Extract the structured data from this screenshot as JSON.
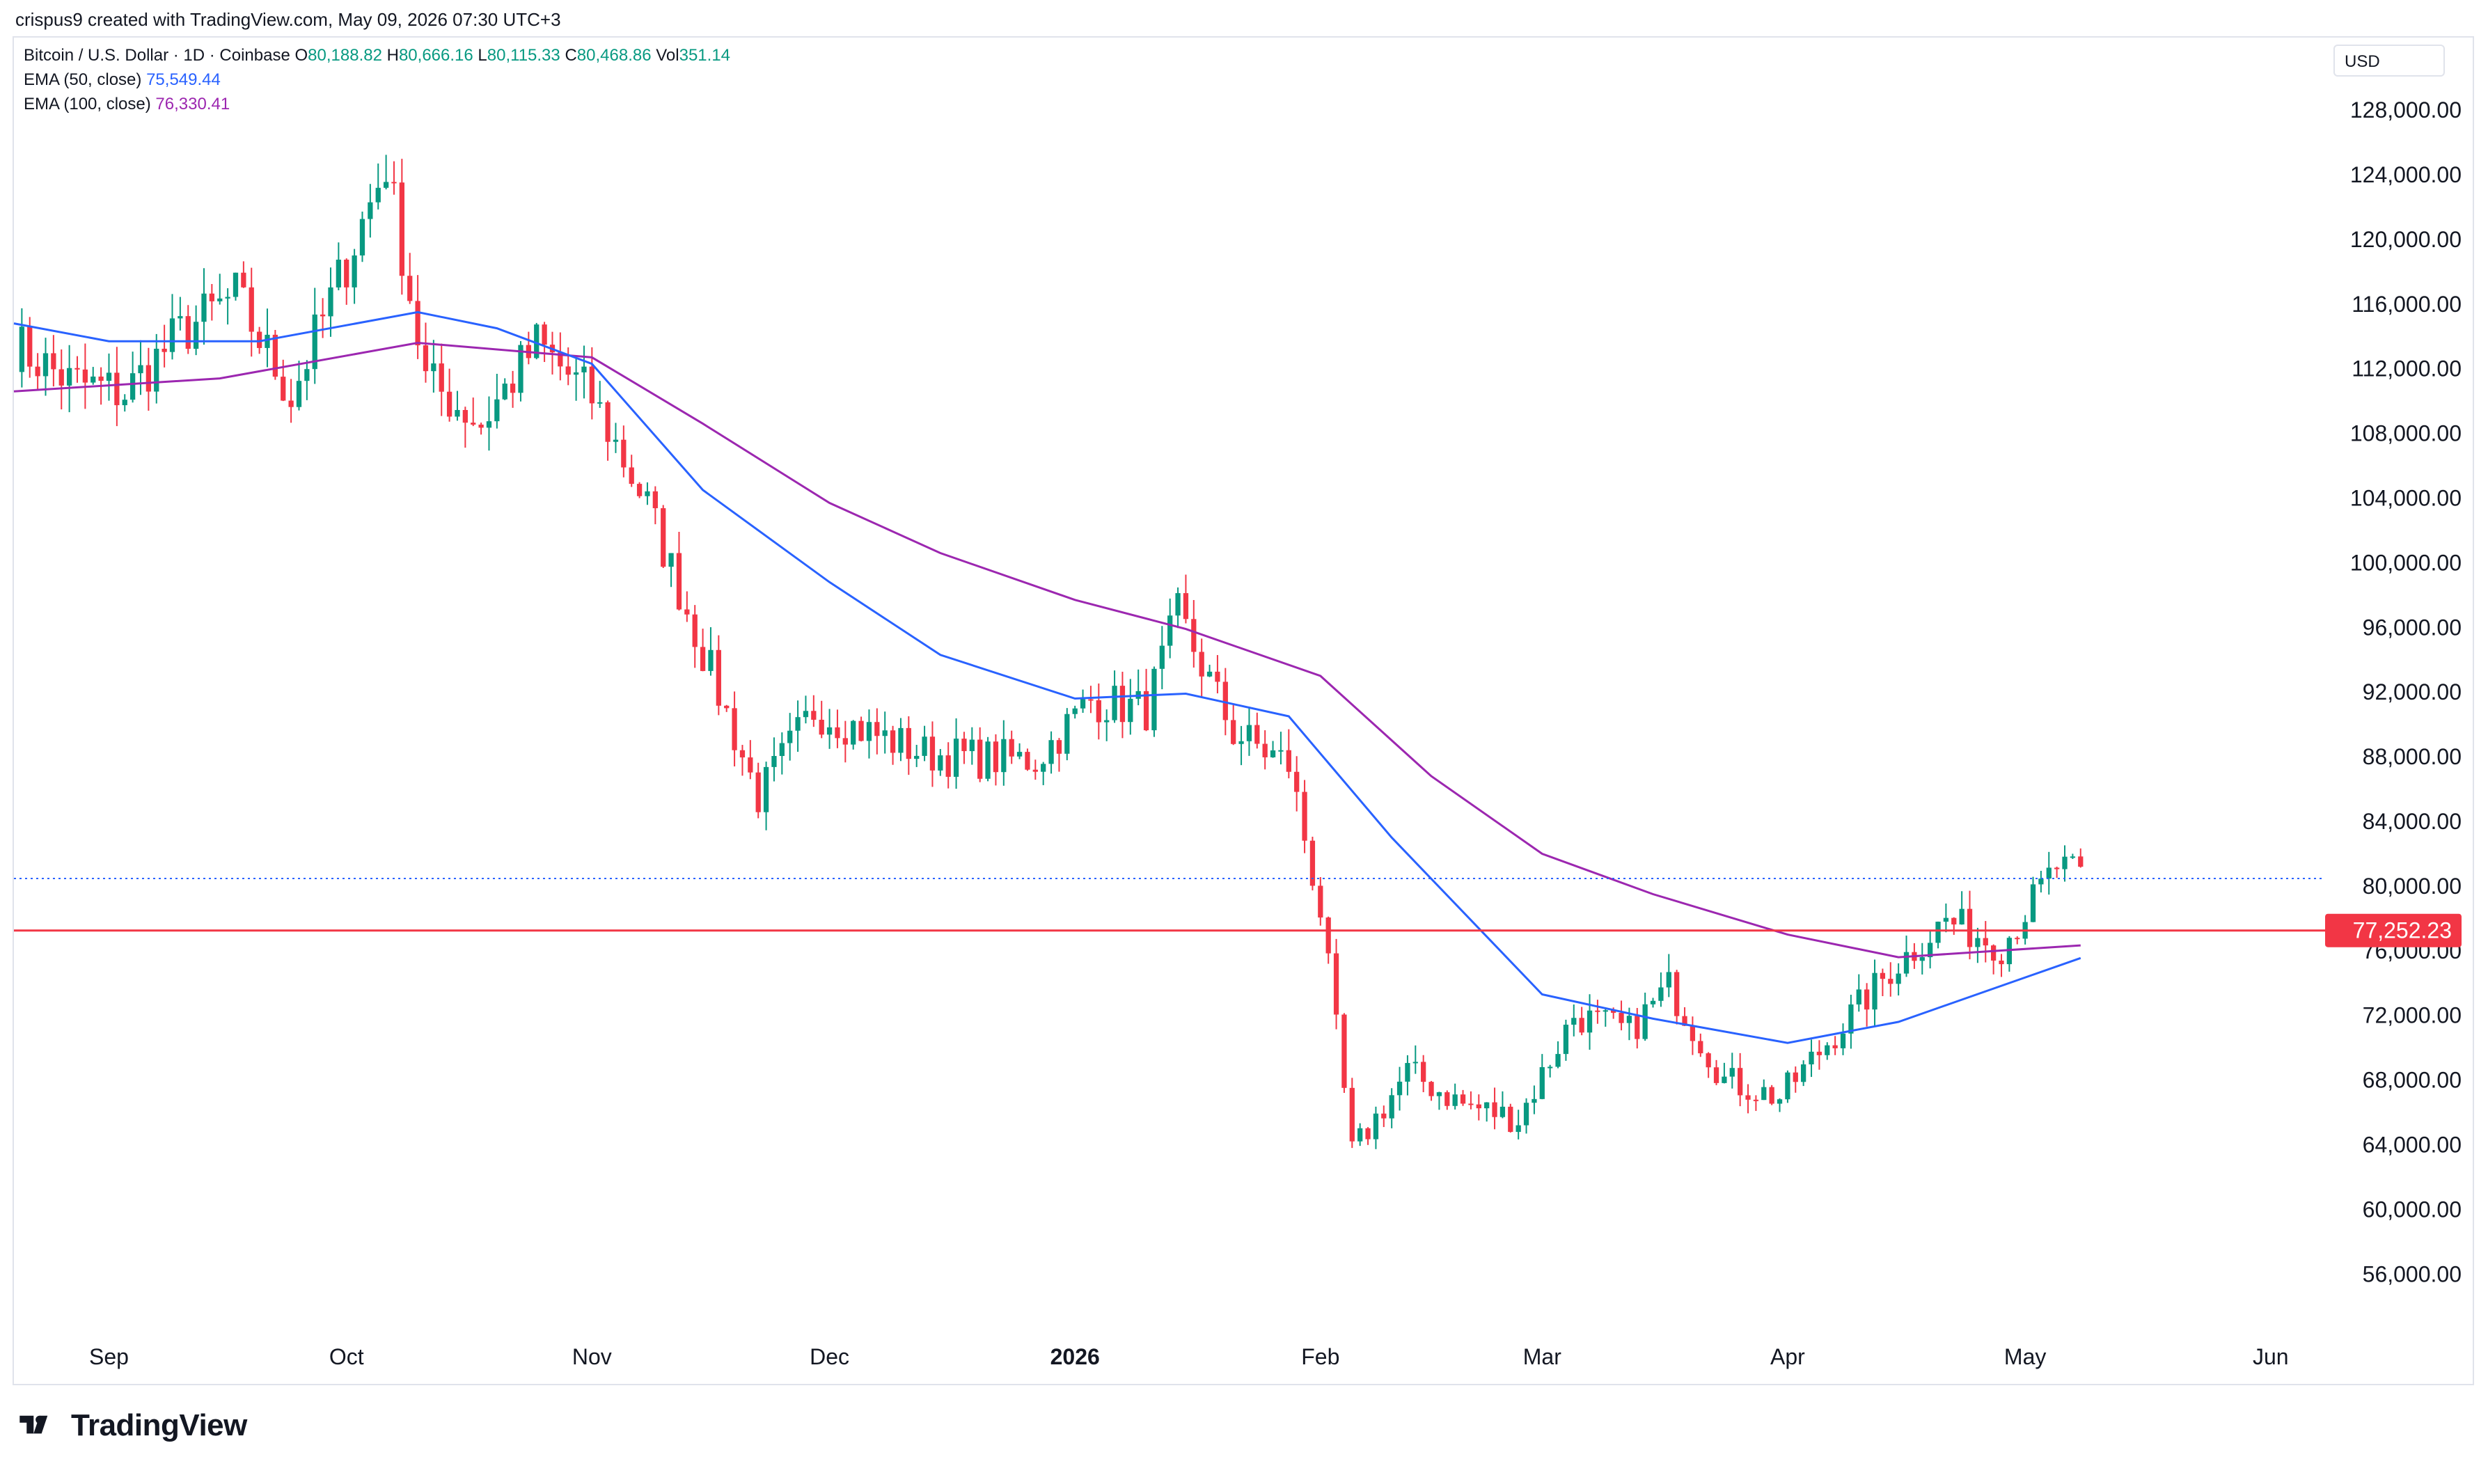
{
  "header": {
    "attribution": "crispus9 created with TradingView.com, May 09, 2026 07:30 UTC+3"
  },
  "legend": {
    "symbol": "Bitcoin / U.S. Dollar · 1D · Coinbase",
    "o_label": "O",
    "o_value": "80,188.82",
    "h_label": "H",
    "h_value": "80,666.16",
    "l_label": "L",
    "l_value": "80,115.33",
    "c_label": "C",
    "c_value": "80,468.86",
    "vol_label": "Vol",
    "vol_value": "351.14",
    "ema50_label": "EMA (50, close)",
    "ema50_value": "75,549.44",
    "ema100_label": "EMA (100, close)",
    "ema100_value": "76,330.41"
  },
  "currency_button": "USD",
  "footer": {
    "brand": "TradingView"
  },
  "colors": {
    "up": "#089981",
    "down": "#f23645",
    "ema50": "#2962ff",
    "ema100": "#9c27b0",
    "support_line": "#f23645",
    "price_line": "#2962ff",
    "grid": "#e0e3eb"
  },
  "chart_data": {
    "type": "candlestick",
    "symbol": "BTCUSD",
    "interval": "1D",
    "y_axis_ticks": [
      "56,000.00",
      "60,000.00",
      "64,000.00",
      "68,000.00",
      "72,000.00",
      "76,000.00",
      "80,000.00",
      "84,000.00",
      "88,000.00",
      "92,000.00",
      "96,000.00",
      "100,000.00",
      "104,000.00",
      "108,000.00",
      "112,000.00",
      "116,000.00",
      "120,000.00",
      "124,000.00",
      "128,000.00"
    ],
    "x_axis_ticks": [
      {
        "label": "Sep",
        "date": "2025-09-01",
        "bold": false
      },
      {
        "label": "Oct",
        "date": "2025-10-01",
        "bold": false
      },
      {
        "label": "Nov",
        "date": "2025-11-01",
        "bold": false
      },
      {
        "label": "Dec",
        "date": "2025-12-01",
        "bold": false
      },
      {
        "label": "2026",
        "date": "2026-01-01",
        "bold": true
      },
      {
        "label": "Feb",
        "date": "2026-02-01",
        "bold": false
      },
      {
        "label": "Mar",
        "date": "2026-03-01",
        "bold": false
      },
      {
        "label": "Apr",
        "date": "2026-04-01",
        "bold": false
      },
      {
        "label": "May",
        "date": "2026-05-01",
        "bold": false
      },
      {
        "label": "Jun",
        "date": "2026-06-01",
        "bold": false
      }
    ],
    "x_range": [
      "2025-08-20",
      "2026-06-07"
    ],
    "y_range": [
      53000,
      130500
    ],
    "support_level": 77252.23,
    "support_label": "77,252.23",
    "last_close": 80468.86,
    "weekly_closes": [
      {
        "date": "2025-08-20",
        "close": 113500
      },
      {
        "date": "2025-08-27",
        "close": 111200
      },
      {
        "date": "2025-09-03",
        "close": 110500
      },
      {
        "date": "2025-09-10",
        "close": 114200
      },
      {
        "date": "2025-09-17",
        "close": 116500
      },
      {
        "date": "2025-09-24",
        "close": 110300
      },
      {
        "date": "2025-10-01",
        "close": 118600
      },
      {
        "date": "2025-10-06",
        "close": 124700
      },
      {
        "date": "2025-10-11",
        "close": 111300
      },
      {
        "date": "2025-10-18",
        "close": 108600
      },
      {
        "date": "2025-10-25",
        "close": 113500
      },
      {
        "date": "2025-11-01",
        "close": 110200
      },
      {
        "date": "2025-11-08",
        "close": 103500
      },
      {
        "date": "2025-11-15",
        "close": 94500
      },
      {
        "date": "2025-11-22",
        "close": 85500
      },
      {
        "date": "2025-11-29",
        "close": 90900
      },
      {
        "date": "2025-12-06",
        "close": 89500
      },
      {
        "date": "2025-12-13",
        "close": 88200
      },
      {
        "date": "2025-12-20",
        "close": 87900
      },
      {
        "date": "2025-12-27",
        "close": 87800
      },
      {
        "date": "2026-01-03",
        "close": 91500
      },
      {
        "date": "2026-01-10",
        "close": 90900
      },
      {
        "date": "2026-01-14",
        "close": 96800
      },
      {
        "date": "2026-01-21",
        "close": 89500
      },
      {
        "date": "2026-01-28",
        "close": 87500
      },
      {
        "date": "2026-02-01",
        "close": 78500
      },
      {
        "date": "2026-02-05",
        "close": 63500
      },
      {
        "date": "2026-02-12",
        "close": 68500
      },
      {
        "date": "2026-02-19",
        "close": 66500
      },
      {
        "date": "2026-02-26",
        "close": 65600
      },
      {
        "date": "2026-03-05",
        "close": 72000
      },
      {
        "date": "2026-03-12",
        "close": 71000
      },
      {
        "date": "2026-03-17",
        "close": 73800
      },
      {
        "date": "2026-03-24",
        "close": 68000
      },
      {
        "date": "2026-03-31",
        "close": 66900
      },
      {
        "date": "2026-04-07",
        "close": 70900
      },
      {
        "date": "2026-04-14",
        "close": 74800
      },
      {
        "date": "2026-04-21",
        "close": 77900
      },
      {
        "date": "2026-04-28",
        "close": 76300
      },
      {
        "date": "2026-05-05",
        "close": 81200
      },
      {
        "date": "2026-05-08",
        "close": 80469
      }
    ],
    "ema50_points": [
      {
        "date": "2025-08-20",
        "value": 114800
      },
      {
        "date": "2025-09-01",
        "value": 113700
      },
      {
        "date": "2025-09-20",
        "value": 113700
      },
      {
        "date": "2025-10-10",
        "value": 115500
      },
      {
        "date": "2025-10-20",
        "value": 114500
      },
      {
        "date": "2025-11-01",
        "value": 112300
      },
      {
        "date": "2025-11-15",
        "value": 104500
      },
      {
        "date": "2025-12-01",
        "value": 98800
      },
      {
        "date": "2025-12-15",
        "value": 94300
      },
      {
        "date": "2026-01-01",
        "value": 91600
      },
      {
        "date": "2026-01-15",
        "value": 91900
      },
      {
        "date": "2026-01-28",
        "value": 90500
      },
      {
        "date": "2026-02-10",
        "value": 83000
      },
      {
        "date": "2026-03-01",
        "value": 73300
      },
      {
        "date": "2026-03-15",
        "value": 71800
      },
      {
        "date": "2026-04-01",
        "value": 70300
      },
      {
        "date": "2026-04-15",
        "value": 71600
      },
      {
        "date": "2026-05-08",
        "value": 75549
      }
    ],
    "ema100_points": [
      {
        "date": "2025-08-20",
        "value": 110600
      },
      {
        "date": "2025-09-15",
        "value": 111400
      },
      {
        "date": "2025-10-10",
        "value": 113600
      },
      {
        "date": "2025-11-01",
        "value": 112700
      },
      {
        "date": "2025-11-15",
        "value": 108600
      },
      {
        "date": "2025-12-01",
        "value": 103700
      },
      {
        "date": "2025-12-15",
        "value": 100600
      },
      {
        "date": "2026-01-01",
        "value": 97700
      },
      {
        "date": "2026-01-15",
        "value": 95900
      },
      {
        "date": "2026-02-01",
        "value": 93000
      },
      {
        "date": "2026-02-15",
        "value": 86800
      },
      {
        "date": "2026-03-01",
        "value": 82000
      },
      {
        "date": "2026-03-15",
        "value": 79500
      },
      {
        "date": "2026-04-01",
        "value": 77000
      },
      {
        "date": "2026-04-15",
        "value": 75600
      },
      {
        "date": "2026-05-08",
        "value": 76330
      }
    ],
    "grid": false,
    "legend_position": "top-left"
  }
}
